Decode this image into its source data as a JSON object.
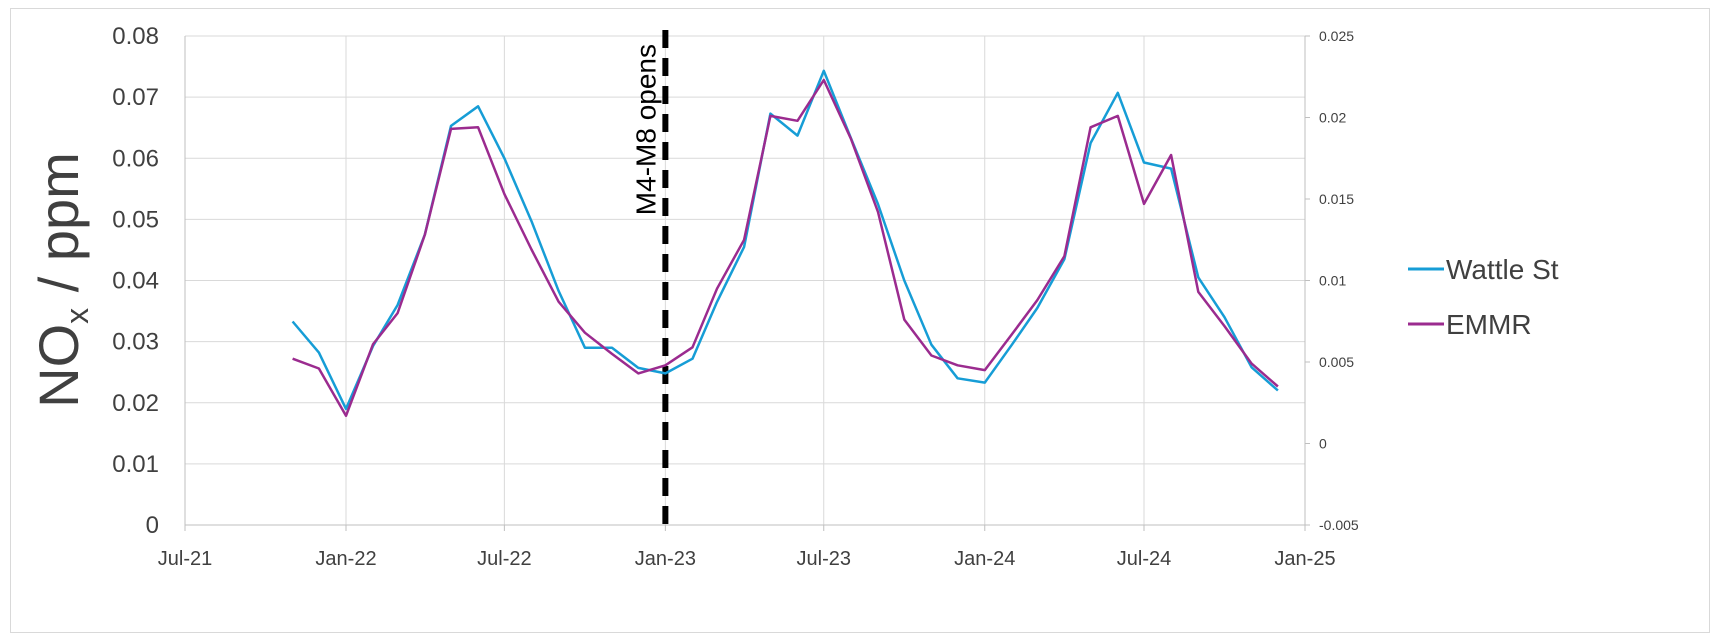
{
  "chart_data": {
    "type": "line",
    "title": "",
    "ylabel_main": "NO",
    "ylabel_sub": "x",
    "ylabel_unit": " / ppm",
    "y_left": {
      "min": 0,
      "max": 0.08,
      "ticks": [
        0,
        0.01,
        0.02,
        0.03,
        0.04,
        0.05,
        0.06,
        0.07,
        0.08
      ],
      "tick_labels": [
        "0",
        "0.01",
        "0.02",
        "0.03",
        "0.04",
        "0.05",
        "0.06",
        "0.07",
        "0.08"
      ]
    },
    "y_right": {
      "min": -0.005,
      "max": 0.025,
      "ticks": [
        -0.005,
        0,
        0.005,
        0.01,
        0.015,
        0.02,
        0.025
      ],
      "tick_labels": [
        "-0.005",
        "0",
        "0.005",
        "0.01",
        "0.015",
        "0.02",
        "0.025"
      ]
    },
    "x_axis": {
      "start": "2021-07-01",
      "end": "2025-01-01",
      "ticks": [
        "2021-07-01",
        "2022-01-01",
        "2022-07-01",
        "2023-01-01",
        "2023-07-01",
        "2024-01-01",
        "2024-07-01",
        "2025-01-01"
      ],
      "tick_labels": [
        "Jul-21",
        "Jan-22",
        "Jul-22",
        "Jan-23",
        "Jul-23",
        "Jan-24",
        "Jul-24",
        "Jan-25"
      ]
    },
    "grid": true,
    "legend_position": "right",
    "annotation": {
      "label": "M4-M8 opens",
      "x": "2023-01-01"
    },
    "series": [
      {
        "name": "Wattle St",
        "axis": "left",
        "color": "#169dd6",
        "points": [
          [
            "2021-11-01",
            0.0333
          ],
          [
            "2021-12-01",
            0.0282
          ],
          [
            "2022-01-01",
            0.019
          ],
          [
            "2022-02-01",
            0.0293
          ],
          [
            "2022-03-01",
            0.036
          ],
          [
            "2022-04-01",
            0.0475
          ],
          [
            "2022-05-01",
            0.0653
          ],
          [
            "2022-06-01",
            0.0685
          ],
          [
            "2022-07-01",
            0.06
          ],
          [
            "2022-08-01",
            0.0497
          ],
          [
            "2022-09-01",
            0.0383
          ],
          [
            "2022-10-01",
            0.029
          ],
          [
            "2022-11-01",
            0.029
          ],
          [
            "2022-12-01",
            0.0257
          ],
          [
            "2023-01-01",
            0.0248
          ],
          [
            "2023-02-01",
            0.0272
          ],
          [
            "2023-03-01",
            0.0365
          ],
          [
            "2023-04-01",
            0.0455
          ],
          [
            "2023-05-01",
            0.0673
          ],
          [
            "2023-06-01",
            0.0637
          ],
          [
            "2023-07-01",
            0.0743
          ],
          [
            "2023-08-01",
            0.0633
          ],
          [
            "2023-09-01",
            0.0525
          ],
          [
            "2023-10-01",
            0.04
          ],
          [
            "2023-11-01",
            0.0295
          ],
          [
            "2023-12-01",
            0.024
          ],
          [
            "2024-01-01",
            0.0233
          ],
          [
            "2024-02-01",
            0.0295
          ],
          [
            "2024-03-01",
            0.0355
          ],
          [
            "2024-04-01",
            0.0435
          ],
          [
            "2024-05-01",
            0.0625
          ],
          [
            "2024-06-01",
            0.0707
          ],
          [
            "2024-07-01",
            0.0593
          ],
          [
            "2024-08-01",
            0.0583
          ],
          [
            "2024-09-01",
            0.0405
          ],
          [
            "2024-10-01",
            0.034
          ],
          [
            "2024-11-01",
            0.0258
          ],
          [
            "2024-12-01",
            0.022
          ]
        ]
      },
      {
        "name": "EMMR",
        "axis": "right",
        "color": "#9b2b8f",
        "points": [
          [
            "2021-11-01",
            0.0052
          ],
          [
            "2021-12-01",
            0.0046
          ],
          [
            "2022-01-01",
            0.0017
          ],
          [
            "2022-02-01",
            0.0061
          ],
          [
            "2022-03-01",
            0.008
          ],
          [
            "2022-04-01",
            0.0128
          ],
          [
            "2022-05-01",
            0.0193
          ],
          [
            "2022-06-01",
            0.0194
          ],
          [
            "2022-07-01",
            0.0153
          ],
          [
            "2022-08-01",
            0.0119
          ],
          [
            "2022-09-01",
            0.0087
          ],
          [
            "2022-10-01",
            0.0068
          ],
          [
            "2022-11-01",
            0.0055
          ],
          [
            "2022-12-01",
            0.0043
          ],
          [
            "2023-01-01",
            0.0048
          ],
          [
            "2023-02-01",
            0.0059
          ],
          [
            "2023-03-01",
            0.0095
          ],
          [
            "2023-04-01",
            0.0125
          ],
          [
            "2023-05-01",
            0.0201
          ],
          [
            "2023-06-01",
            0.0198
          ],
          [
            "2023-07-01",
            0.0223
          ],
          [
            "2023-08-01",
            0.0187
          ],
          [
            "2023-09-01",
            0.0142
          ],
          [
            "2023-10-01",
            0.0076
          ],
          [
            "2023-11-01",
            0.0054
          ],
          [
            "2023-12-01",
            0.0048
          ],
          [
            "2024-01-01",
            0.0045
          ],
          [
            "2024-02-01",
            0.0067
          ],
          [
            "2024-03-01",
            0.0088
          ],
          [
            "2024-04-01",
            0.0115
          ],
          [
            "2024-05-01",
            0.0194
          ],
          [
            "2024-06-01",
            0.0201
          ],
          [
            "2024-07-01",
            0.0147
          ],
          [
            "2024-08-01",
            0.0177
          ],
          [
            "2024-09-01",
            0.0093
          ],
          [
            "2024-10-01",
            0.0072
          ],
          [
            "2024-11-01",
            0.0049
          ],
          [
            "2024-12-01",
            0.0035
          ]
        ]
      }
    ]
  }
}
